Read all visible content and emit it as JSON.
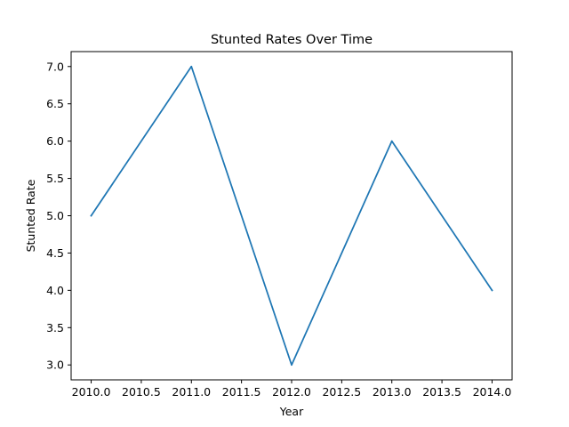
{
  "chart_data": {
    "type": "line",
    "title": "Stunted Rates Over Time",
    "xlabel": "Year",
    "ylabel": "Stunted Rate",
    "x": [
      2010,
      2011,
      2012,
      2013,
      2014
    ],
    "series": [
      {
        "values": [
          5,
          7,
          3,
          6,
          4
        ],
        "color": "#1f77b4"
      }
    ],
    "xlim": [
      2009.8,
      2014.2
    ],
    "ylim": [
      2.8,
      7.2
    ],
    "x_ticks": [
      "2010.0",
      "2010.5",
      "2011.0",
      "2011.5",
      "2012.0",
      "2012.5",
      "2013.0",
      "2013.5",
      "2014.0"
    ],
    "y_ticks": [
      "3.0",
      "3.5",
      "4.0",
      "4.5",
      "5.0",
      "5.5",
      "6.0",
      "6.5",
      "7.0"
    ],
    "grid": false,
    "legend": "none"
  }
}
